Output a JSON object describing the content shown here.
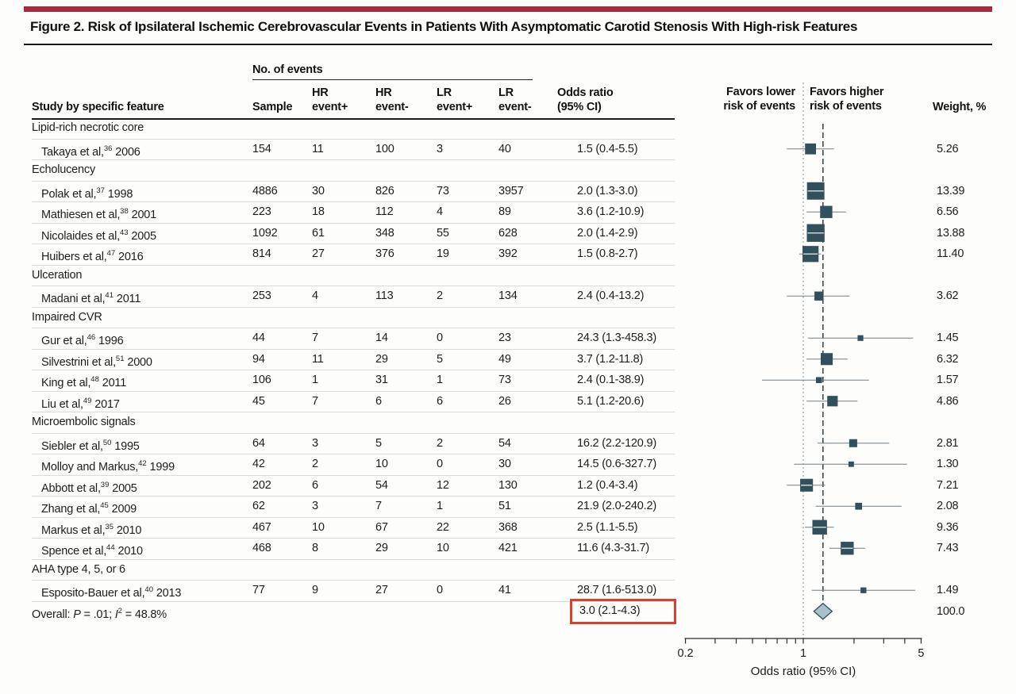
{
  "figure": {
    "title": "Figure 2. Risk of Ipsilateral Ischemic Cerebrovascular Events in Patients With Asymptomatic Carotid Stenosis With High-risk Features"
  },
  "table": {
    "group_header": "No. of events",
    "columns": {
      "study": "Study by specific feature",
      "sample": "Sample",
      "hr_pos": "HR\nevent+",
      "hr_neg": "HR\nevent-",
      "lr_pos": "LR\nevent+",
      "lr_neg": "LR\nevent-",
      "odds_ratio": "Odds ratio\n(95% CI)",
      "weight": "Weight, %"
    }
  },
  "plot_header": {
    "favors_left": "Favors lower\nrisk of events",
    "favors_right": "Favors higher\nrisk of events"
  },
  "overall_label": {
    "prefix": "Overall: ",
    "p_label": "P",
    "p_value": " = .01; ",
    "i_label": "I",
    "i_sup": "2",
    "i_value": " = 48.8%"
  },
  "colors": {
    "accent_bar": "#a52c42",
    "marker": "#31505b",
    "ci_line": "#6f7f85",
    "diamond_fill": "#a9c0c8",
    "highlight_box": "#d8402f"
  },
  "chart_data": {
    "type": "forest",
    "title": "Risk of Ipsilateral Ischemic Cerebrovascular Events in Patients With Asymptomatic Carotid Stenosis With High-risk Features",
    "xlabel": "Odds ratio (95% CI)",
    "x_axis": {
      "scale": "log",
      "min": 0.2,
      "max": 5,
      "labeled_ticks": [
        "0.2",
        "1",
        "5"
      ],
      "minor_ticks": [
        0.3,
        0.4,
        0.5,
        0.6,
        0.7,
        0.8,
        0.9,
        2,
        3,
        4
      ],
      "reference_line": 1,
      "overall_dashed_line": 3.0
    },
    "rows": [
      {
        "type": "section",
        "label": "Lipid-rich necrotic core"
      },
      {
        "type": "study",
        "name": "Takaya et al,",
        "ref": "36",
        "year": " 2006",
        "sample": "154",
        "hr_pos": "11",
        "hr_neg": "100",
        "lr_pos": "3",
        "lr_neg": "40",
        "or": 1.5,
        "ci_low": 0.4,
        "ci_high": 5.5,
        "or_text": "1.5 (0.4-5.5)",
        "weight": 5.26,
        "weight_text": "5.26"
      },
      {
        "type": "section",
        "label": "Echolucency"
      },
      {
        "type": "study",
        "name": "Polak et al,",
        "ref": "37",
        "year": " 1998",
        "sample": "4886",
        "hr_pos": "30",
        "hr_neg": "826",
        "lr_pos": "73",
        "lr_neg": "3957",
        "or": 2.0,
        "ci_low": 1.3,
        "ci_high": 3.0,
        "or_text": "2.0 (1.3-3.0)",
        "weight": 13.39,
        "weight_text": "13.39"
      },
      {
        "type": "study",
        "name": "Mathiesen et al,",
        "ref": "38",
        "year": " 2001",
        "sample": "223",
        "hr_pos": "18",
        "hr_neg": "112",
        "lr_pos": "4",
        "lr_neg": "89",
        "or": 3.6,
        "ci_low": 1.2,
        "ci_high": 10.9,
        "or_text": "3.6 (1.2-10.9)",
        "weight": 6.56,
        "weight_text": "6.56"
      },
      {
        "type": "study",
        "name": "Nicolaides et al,",
        "ref": "43",
        "year": " 2005",
        "sample": "1092",
        "hr_pos": "61",
        "hr_neg": "348",
        "lr_pos": "55",
        "lr_neg": "628",
        "or": 2.0,
        "ci_low": 1.4,
        "ci_high": 2.9,
        "or_text": "2.0 (1.4-2.9)",
        "weight": 13.88,
        "weight_text": "13.88"
      },
      {
        "type": "study",
        "name": "Huibers et al,",
        "ref": "47",
        "year": " 2016",
        "sample": "814",
        "hr_pos": "27",
        "hr_neg": "376",
        "lr_pos": "19",
        "lr_neg": "392",
        "or": 1.5,
        "ci_low": 0.8,
        "ci_high": 2.7,
        "or_text": "1.5 (0.8-2.7)",
        "weight": 11.4,
        "weight_text": "11.40"
      },
      {
        "type": "section",
        "label": "Ulceration"
      },
      {
        "type": "study",
        "name": "Madani et al,",
        "ref": "41",
        "year": " 2011",
        "sample": "253",
        "hr_pos": "4",
        "hr_neg": "113",
        "lr_pos": "2",
        "lr_neg": "134",
        "or": 2.4,
        "ci_low": 0.4,
        "ci_high": 13.2,
        "or_text": "2.4 (0.4-13.2)",
        "weight": 3.62,
        "weight_text": "3.62"
      },
      {
        "type": "section",
        "label": "Impaired CVR"
      },
      {
        "type": "study",
        "name": "Gur et al,",
        "ref": "46",
        "year": " 1996",
        "sample": "44",
        "hr_pos": "7",
        "hr_neg": "14",
        "lr_pos": "0",
        "lr_neg": "23",
        "or": 24.3,
        "ci_low": 1.3,
        "ci_high": 458.3,
        "or_text": "24.3 (1.3-458.3)",
        "weight": 1.45,
        "weight_text": "1.45"
      },
      {
        "type": "study",
        "name": "Silvestrini et al,",
        "ref": "51",
        "year": " 2000",
        "sample": "94",
        "hr_pos": "11",
        "hr_neg": "29",
        "lr_pos": "5",
        "lr_neg": "49",
        "or": 3.7,
        "ci_low": 1.2,
        "ci_high": 11.8,
        "or_text": "3.7 (1.2-11.8)",
        "weight": 6.32,
        "weight_text": "6.32"
      },
      {
        "type": "study",
        "name": "King et al,",
        "ref": "48",
        "year": " 2011",
        "sample": "106",
        "hr_pos": "1",
        "hr_neg": "31",
        "lr_pos": "1",
        "lr_neg": "73",
        "or": 2.4,
        "ci_low": 0.1,
        "ci_high": 38.9,
        "or_text": "2.4 (0.1-38.9)",
        "weight": 1.57,
        "weight_text": "1.57"
      },
      {
        "type": "study",
        "name": "Liu et al,",
        "ref": "49",
        "year": " 2017",
        "sample": "45",
        "hr_pos": "7",
        "hr_neg": "6",
        "lr_pos": "6",
        "lr_neg": "26",
        "or": 5.1,
        "ci_low": 1.2,
        "ci_high": 20.6,
        "or_text": "5.1 (1.2-20.6)",
        "weight": 4.86,
        "weight_text": "4.86"
      },
      {
        "type": "section",
        "label": "Microembolic signals"
      },
      {
        "type": "study",
        "name": "Siebler et al,",
        "ref": "50",
        "year": " 1995",
        "sample": "64",
        "hr_pos": "3",
        "hr_neg": "5",
        "lr_pos": "2",
        "lr_neg": "54",
        "or": 16.2,
        "ci_low": 2.2,
        "ci_high": 120.9,
        "or_text": "16.2 (2.2-120.9)",
        "weight": 2.81,
        "weight_text": "2.81"
      },
      {
        "type": "study",
        "name": "Molloy and Markus,",
        "ref": "42",
        "year": " 1999",
        "sample": "42",
        "hr_pos": "2",
        "hr_neg": "10",
        "lr_pos": "0",
        "lr_neg": "30",
        "or": 14.5,
        "ci_low": 0.6,
        "ci_high": 327.7,
        "or_text": "14.5 (0.6-327.7)",
        "weight": 1.3,
        "weight_text": "1.30"
      },
      {
        "type": "study",
        "name": "Abbott et al,",
        "ref": "39",
        "year": " 2005",
        "sample": "202",
        "hr_pos": "6",
        "hr_neg": "54",
        "lr_pos": "12",
        "lr_neg": "130",
        "or": 1.2,
        "ci_low": 0.4,
        "ci_high": 3.4,
        "or_text": "1.2 (0.4-3.4)",
        "weight": 7.21,
        "weight_text": "7.21"
      },
      {
        "type": "study",
        "name": "Zhang et al,",
        "ref": "45",
        "year": " 2009",
        "sample": "62",
        "hr_pos": "3",
        "hr_neg": "7",
        "lr_pos": "1",
        "lr_neg": "51",
        "or": 21.9,
        "ci_low": 2.0,
        "ci_high": 240.2,
        "or_text": "21.9 (2.0-240.2)",
        "weight": 2.08,
        "weight_text": "2.08"
      },
      {
        "type": "study",
        "name": "Markus et al,",
        "ref": "35",
        "year": " 2010",
        "sample": "467",
        "hr_pos": "10",
        "hr_neg": "67",
        "lr_pos": "22",
        "lr_neg": "368",
        "or": 2.5,
        "ci_low": 1.1,
        "ci_high": 5.5,
        "or_text": "2.5 (1.1-5.5)",
        "weight": 9.36,
        "weight_text": "9.36"
      },
      {
        "type": "study",
        "name": "Spence et al,",
        "ref": "44",
        "year": " 2010",
        "sample": "468",
        "hr_pos": "8",
        "hr_neg": "29",
        "lr_pos": "10",
        "lr_neg": "421",
        "or": 11.6,
        "ci_low": 4.3,
        "ci_high": 31.7,
        "or_text": "11.6 (4.3-31.7)",
        "weight": 7.43,
        "weight_text": "7.43"
      },
      {
        "type": "section",
        "label": "AHA type 4, 5, or 6"
      },
      {
        "type": "study",
        "name": "Esposito-Bauer et al,",
        "ref": "40",
        "year": " 2013",
        "sample": "77",
        "hr_pos": "9",
        "hr_neg": "27",
        "lr_pos": "0",
        "lr_neg": "41",
        "or": 28.7,
        "ci_low": 1.6,
        "ci_high": 513.0,
        "or_text": "28.7 (1.6-513.0)",
        "weight": 1.49,
        "weight_text": "1.49"
      },
      {
        "type": "overall",
        "or": 3.0,
        "ci_low": 2.1,
        "ci_high": 4.3,
        "or_text": "3.0 (2.1-4.3)",
        "weight_text": "100.0"
      }
    ]
  }
}
